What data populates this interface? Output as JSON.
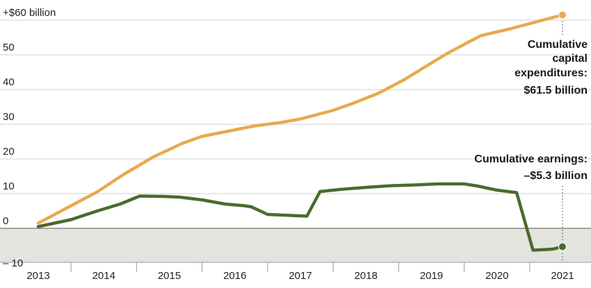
{
  "chart_data": {
    "type": "line",
    "x_labels": [
      "2013",
      "2014",
      "2015",
      "2016",
      "2017",
      "2018",
      "2019",
      "2020",
      "2021"
    ],
    "y_labels": [
      "+$60 billion",
      "50",
      "40",
      "30",
      "20",
      "10",
      "0",
      "– 10"
    ],
    "ylim": [
      -10,
      60
    ],
    "grid": true,
    "series": [
      {
        "key": "capex",
        "color": "#e9a94f",
        "points": [
          [
            2013.0,
            1.5
          ],
          [
            2013.5,
            6.5
          ],
          [
            2013.9,
            10.5
          ],
          [
            2014.3,
            15.5
          ],
          [
            2014.75,
            20.5
          ],
          [
            2015.2,
            24.5
          ],
          [
            2015.5,
            26.5
          ],
          [
            2015.9,
            28.0
          ],
          [
            2016.3,
            29.5
          ],
          [
            2016.7,
            30.5
          ],
          [
            2017.0,
            31.5
          ],
          [
            2017.5,
            34.0
          ],
          [
            2017.8,
            36.0
          ],
          [
            2018.2,
            39.0
          ],
          [
            2018.6,
            43.0
          ],
          [
            2018.9,
            46.5
          ],
          [
            2019.25,
            50.5
          ],
          [
            2019.55,
            53.5
          ],
          [
            2019.75,
            55.5
          ],
          [
            2020.2,
            57.5
          ],
          [
            2020.6,
            59.5
          ],
          [
            2021.0,
            61.5
          ]
        ]
      },
      {
        "key": "earnings",
        "color": "#4a6b2c",
        "points": [
          [
            2013.0,
            0.5
          ],
          [
            2013.5,
            2.5
          ],
          [
            2013.9,
            5.0
          ],
          [
            2014.25,
            7.0
          ],
          [
            2014.55,
            9.3
          ],
          [
            2014.9,
            9.2
          ],
          [
            2015.15,
            9.0
          ],
          [
            2015.5,
            8.2
          ],
          [
            2015.85,
            7.0
          ],
          [
            2016.15,
            6.5
          ],
          [
            2016.25,
            6.2
          ],
          [
            2016.5,
            4.0
          ],
          [
            2016.75,
            3.8
          ],
          [
            2017.1,
            3.5
          ],
          [
            2017.3,
            10.6
          ],
          [
            2017.6,
            11.2
          ],
          [
            2018.0,
            11.8
          ],
          [
            2018.4,
            12.3
          ],
          [
            2018.75,
            12.5
          ],
          [
            2019.1,
            12.8
          ],
          [
            2019.5,
            12.8
          ],
          [
            2019.7,
            12.2
          ],
          [
            2020.0,
            11.0
          ],
          [
            2020.3,
            10.3
          ],
          [
            2020.55,
            -6.3
          ],
          [
            2020.85,
            -6.0
          ],
          [
            2021.0,
            -5.3
          ]
        ]
      }
    ],
    "annotations": {
      "capex": [
        "Cumulative",
        "capital",
        "expenditures:",
        "$61.5 billion"
      ],
      "earnings": [
        "Cumulative earnings:",
        "–$5.3 billion"
      ]
    }
  }
}
